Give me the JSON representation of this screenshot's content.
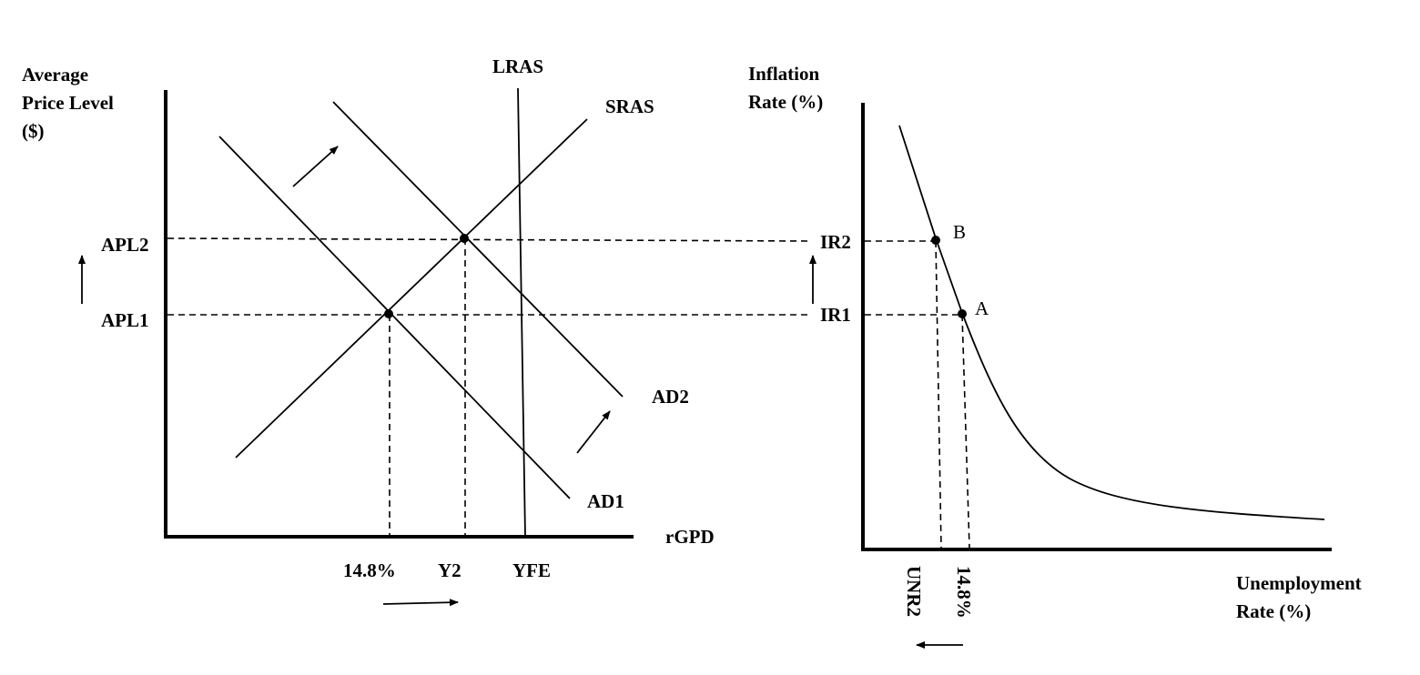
{
  "ad_as": {
    "ylabel": [
      "Average",
      "Price Level",
      "($)"
    ],
    "xlabel": "rGPD",
    "curves": {
      "lras": "LRAS",
      "sras": "SRAS",
      "ad1": "AD1",
      "ad2": "AD2"
    },
    "price_levels": [
      "APL2",
      "APL1"
    ],
    "outputs": [
      "14.8%",
      "Y2",
      "YFE"
    ]
  },
  "phillips": {
    "ylabel": [
      "Inflation",
      "Rate (%)"
    ],
    "xlabel": [
      "Unemployment",
      "Rate (%)"
    ],
    "inflation_rates": [
      "IR2",
      "IR1"
    ],
    "points": [
      "B",
      "A"
    ],
    "unemployment_rates": [
      "UNR2",
      "14.8%"
    ]
  }
}
